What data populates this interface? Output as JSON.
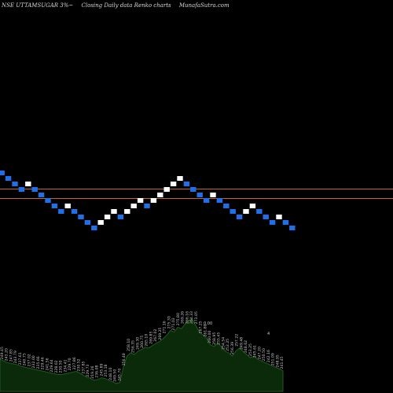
{
  "header": {
    "symbol": "NSE UTTAMSUGAR 3%~",
    "chart_desc": "Closing Daily data  Renko  charts",
    "site": "MunafaSutra.com"
  },
  "colors": {
    "background": "#000000",
    "up_brick": "#ffffff",
    "down_brick": "#1e6fe8",
    "line": "#c8642a",
    "volume_fill": "#0a2a0a",
    "volume_stroke": "#1f5a1f",
    "label": "#c8c8c8"
  },
  "chart_data": {
    "type": "renko",
    "brick_pct": 3,
    "bricks": [
      "down",
      "down",
      "down",
      "down",
      "up",
      "down",
      "down",
      "down",
      "down",
      "down",
      "up",
      "down",
      "down",
      "down",
      "down",
      "up",
      "up",
      "up",
      "down",
      "up",
      "up",
      "up",
      "down",
      "up",
      "up",
      "up",
      "up",
      "up",
      "down",
      "down",
      "down",
      "down",
      "up",
      "down",
      "down",
      "down",
      "down",
      "up",
      "up",
      "down",
      "down",
      "down",
      "up",
      "down",
      "down"
    ],
    "levels": [
      {
        "name": "upper",
        "value": 243.84
      },
      {
        "name": "lower",
        "value": 241.63
      }
    ],
    "volume_labels": [
      "249.45",
      "243.20",
      "247.85",
      "243.79",
      "237.61",
      "240.75",
      "237.02",
      "232.00",
      "235.66",
      "229.46",
      "241.56",
      "229.64",
      "228.02",
      "230.50",
      "234.41",
      "229.70",
      "227.86",
      "230.52",
      "237.85",
      "229.73",
      "219.26",
      "236.08",
      "245.89",
      "253.18",
      "248.10",
      "249.50",
      "245.70",
      "256.48",
      "258.10",
      "256.35",
      "249.30",
      "260.75",
      "265.10",
      "269.85",
      "267.02",
      "269.25",
      "271.16",
      "275.30",
      "271.03",
      "275.80",
      "269.26",
      "266.16",
      "264.33",
      "273.05",
      "267.25",
      "261.80",
      "260.00",
      "258.95",
      "255.45",
      "254.54",
      "252.25",
      "256.39",
      "257.22",
      "249.48",
      "248.62",
      "253.25",
      "245.61",
      "247.20",
      "250.50",
      "242.16",
      "251.09",
      "248.95",
      "241.45"
    ],
    "extra_labels": [
      "0.00",
      "4"
    ],
    "volume": [
      40,
      38,
      36,
      35,
      34,
      33,
      31,
      30,
      29,
      28,
      27,
      26,
      25,
      24,
      23,
      22,
      21,
      21,
      22,
      23,
      24,
      25,
      23,
      20,
      18,
      16,
      14,
      15,
      17,
      16,
      14,
      12,
      10,
      11,
      30,
      44,
      48,
      46,
      50,
      52,
      55,
      54,
      57,
      60,
      62,
      66,
      70,
      76,
      74,
      80,
      78,
      84,
      88,
      90,
      82,
      74,
      70,
      66,
      58,
      56,
      60,
      56,
      50,
      48,
      44,
      50,
      54,
      50,
      46,
      42,
      44,
      40,
      38,
      36,
      34,
      32,
      30,
      28,
      26
    ]
  }
}
